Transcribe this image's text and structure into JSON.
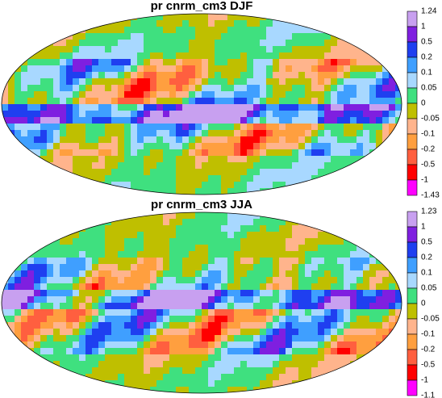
{
  "panels": [
    {
      "title": "pr cnrm_cm3 DJF",
      "levels": [
        1.24,
        1,
        0.5,
        0.2,
        0.1,
        0.05,
        0,
        -0.05,
        -0.1,
        -0.2,
        -0.5,
        -1,
        -1.43
      ],
      "colors": [
        "#c8a0f0",
        "#7f1fe0",
        "#1f3ff0",
        "#3f9fff",
        "#a8d8ff",
        "#3fe07f",
        "#bfbf00",
        "#ffb48c",
        "#ff9f3f",
        "#ff5f3f",
        "#ff0000",
        "#ff00ff"
      ]
    },
    {
      "title": "pr cnrm_cm3 JJA",
      "levels": [
        1.23,
        1,
        0.5,
        0.2,
        0.1,
        0.05,
        0,
        -0.05,
        -0.1,
        -0.2,
        -0.5,
        -1,
        -1.1
      ],
      "colors": [
        "#c8a0f0",
        "#7f1fe0",
        "#1f3ff0",
        "#3f9fff",
        "#a8d8ff",
        "#3fe07f",
        "#bfbf00",
        "#ffb48c",
        "#ff9f3f",
        "#ff5f3f",
        "#ff0000",
        "#ff00ff"
      ]
    }
  ]
}
